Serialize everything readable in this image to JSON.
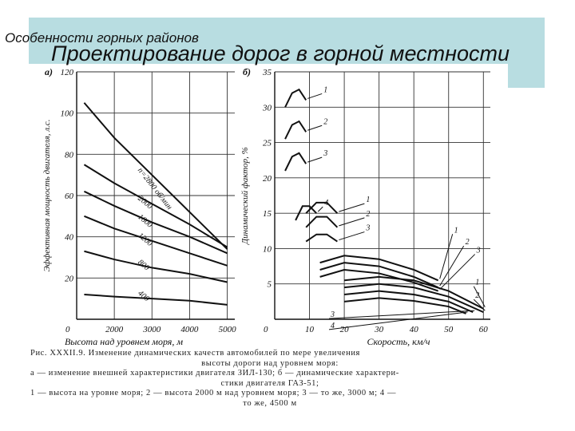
{
  "slide": {
    "section_label": "Особенности горных районов",
    "title": "Проектирование дорог в горной местности"
  },
  "chart_data": [
    {
      "panel_label": "а)",
      "type": "line",
      "ylabel": "Эффективная мощность двигателя, л.с.",
      "xlabel": "Высота над уровнем моря, м",
      "xlim": [
        1000,
        5200
      ],
      "ylim": [
        0,
        120
      ],
      "x_ticks": [
        "2000",
        "3000",
        "4000",
        "5000"
      ],
      "y_ticks": [
        "20",
        "40",
        "60",
        "80",
        "100",
        "120"
      ],
      "origin_label": "0",
      "grid": true,
      "series": [
        {
          "name": "n=2800 об/мин",
          "points": [
            [
              1200,
              105
            ],
            [
              2000,
              88
            ],
            [
              3000,
              70
            ],
            [
              4000,
              52
            ],
            [
              5000,
              34
            ]
          ]
        },
        {
          "name": "2000",
          "points": [
            [
              1200,
              75
            ],
            [
              2000,
              66
            ],
            [
              3000,
              56
            ],
            [
              4000,
              46
            ],
            [
              5000,
              35
            ]
          ]
        },
        {
          "name": "1600",
          "points": [
            [
              1200,
              62
            ],
            [
              2000,
              55
            ],
            [
              3000,
              47
            ],
            [
              4000,
              40
            ],
            [
              5000,
              32
            ]
          ]
        },
        {
          "name": "1200",
          "points": [
            [
              1200,
              50
            ],
            [
              2000,
              44
            ],
            [
              3000,
              38
            ],
            [
              4000,
              32
            ],
            [
              5000,
              26
            ]
          ]
        },
        {
          "name": "800",
          "points": [
            [
              1200,
              33
            ],
            [
              2000,
              29
            ],
            [
              3000,
              25
            ],
            [
              4000,
              22
            ],
            [
              5000,
              18
            ]
          ]
        },
        {
          "name": "400",
          "points": [
            [
              1200,
              12
            ],
            [
              2000,
              11
            ],
            [
              3000,
              10
            ],
            [
              4000,
              9
            ],
            [
              5000,
              7
            ]
          ]
        }
      ]
    },
    {
      "panel_label": "б)",
      "type": "line",
      "ylabel": "Динамический фактор, %",
      "xlabel": "Скорость, км/ч",
      "xlim": [
        0,
        62
      ],
      "ylim": [
        0,
        35
      ],
      "x_ticks": [
        "10",
        "20",
        "30",
        "40",
        "50",
        "60"
      ],
      "y_ticks": [
        "5",
        "10",
        "15",
        "20",
        "25",
        "30",
        "35"
      ],
      "origin_label": "0",
      "grid": true,
      "series": [
        {
          "name": "1",
          "points": [
            [
              3,
              30
            ],
            [
              5,
              32
            ],
            [
              7,
              32.5
            ],
            [
              9,
              31
            ]
          ]
        },
        {
          "name": "2",
          "points": [
            [
              3,
              25.5
            ],
            [
              5,
              27.5
            ],
            [
              7,
              28
            ],
            [
              9,
              26.5
            ]
          ]
        },
        {
          "name": "3",
          "points": [
            [
              3,
              21
            ],
            [
              5,
              23
            ],
            [
              7,
              23.5
            ],
            [
              9,
              22
            ]
          ]
        },
        {
          "name": "4",
          "points": [
            [
              6,
              14
            ],
            [
              8,
              16
            ],
            [
              10,
              16
            ],
            [
              12,
              15
            ]
          ]
        },
        {
          "name": "1",
          "points": [
            [
              9,
              15
            ],
            [
              12,
              16.5
            ],
            [
              15,
              16.5
            ],
            [
              18,
              15
            ]
          ]
        },
        {
          "name": "2",
          "points": [
            [
              9,
              13
            ],
            [
              12,
              14.5
            ],
            [
              15,
              14.5
            ],
            [
              18,
              13
            ]
          ]
        },
        {
          "name": "3",
          "points": [
            [
              9,
              11
            ],
            [
              12,
              12
            ],
            [
              15,
              12
            ],
            [
              18,
              11
            ]
          ]
        },
        {
          "name": "1",
          "points": [
            [
              13,
              8
            ],
            [
              20,
              9
            ],
            [
              30,
              8.5
            ],
            [
              40,
              7
            ],
            [
              47,
              5.5
            ]
          ]
        },
        {
          "name": "2",
          "points": [
            [
              13,
              7
            ],
            [
              20,
              8
            ],
            [
              30,
              7.5
            ],
            [
              40,
              6
            ],
            [
              47,
              4.5
            ]
          ]
        },
        {
          "name": "3",
          "points": [
            [
              13,
              6
            ],
            [
              20,
              7
            ],
            [
              30,
              6.5
            ],
            [
              40,
              5.2
            ],
            [
              47,
              4
            ]
          ]
        },
        {
          "name": "1",
          "points": [
            [
              20,
              5.5
            ],
            [
              30,
              6
            ],
            [
              40,
              5.5
            ],
            [
              50,
              4
            ],
            [
              60,
              1.5
            ]
          ]
        },
        {
          "name": "2",
          "points": [
            [
              20,
              4.5
            ],
            [
              30,
              5
            ],
            [
              40,
              4.5
            ],
            [
              50,
              3.2
            ],
            [
              60,
              1
            ]
          ]
        },
        {
          "name": "3",
          "points": [
            [
              20,
              3.5
            ],
            [
              30,
              4
            ],
            [
              40,
              3.5
            ],
            [
              50,
              2.5
            ],
            [
              57,
              1
            ]
          ]
        },
        {
          "name": "4",
          "points": [
            [
              20,
              2.5
            ],
            [
              30,
              3
            ],
            [
              40,
              2.6
            ],
            [
              50,
              1.8
            ],
            [
              55,
              0.8
            ]
          ]
        }
      ]
    }
  ],
  "figure_caption": {
    "line1": "Рис. XXXII.9. Изменение динамических качеств автомобилей по мере увеличения",
    "line2": "высоты дороги над уровнем моря:",
    "line3": "а — изменение внешней характеристики двигателя ЗИЛ-130; б — динамические характери-",
    "line4": "стики двигателя ГАЗ-51;",
    "line5": "1 — высота на уровне моря; 2 — высота 2000 м над уровнем моря; 3 — то же, 3000 м; 4 —",
    "line6": "то же, 4500 м"
  }
}
